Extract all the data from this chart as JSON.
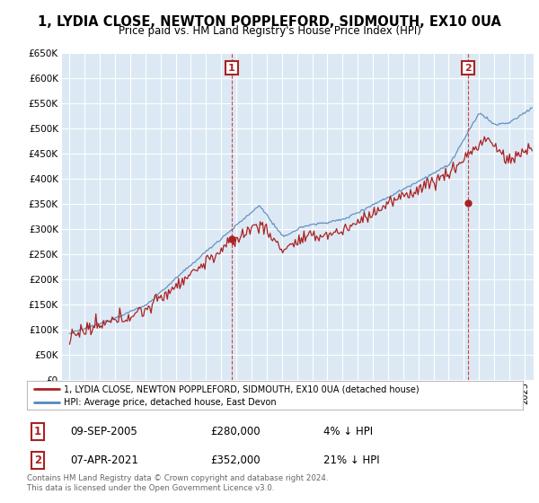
{
  "title": "1, LYDIA CLOSE, NEWTON POPPLEFORD, SIDMOUTH, EX10 0UA",
  "subtitle": "Price paid vs. HM Land Registry's House Price Index (HPI)",
  "ylim": [
    0,
    650000
  ],
  "yticks": [
    0,
    50000,
    100000,
    150000,
    200000,
    250000,
    300000,
    350000,
    400000,
    450000,
    500000,
    550000,
    600000,
    650000
  ],
  "xlim_start": 1994.5,
  "xlim_end": 2025.6,
  "background_color": "#dce9f5",
  "grid_color": "#ffffff",
  "sale1_date": 2005.69,
  "sale1_price": 280000,
  "sale1_label": "1",
  "sale2_date": 2021.27,
  "sale2_price": 352000,
  "sale2_label": "2",
  "legend_line1": "1, LYDIA CLOSE, NEWTON POPPLEFORD, SIDMOUTH, EX10 0UA (detached house)",
  "legend_line2": "HPI: Average price, detached house, East Devon",
  "table_row1": [
    "1",
    "09-SEP-2005",
    "£280,000",
    "4% ↓ HPI"
  ],
  "table_row2": [
    "2",
    "07-APR-2021",
    "£352,000",
    "21% ↓ HPI"
  ],
  "footer": "Contains HM Land Registry data © Crown copyright and database right 2024.\nThis data is licensed under the Open Government Licence v3.0.",
  "line_color_hpi": "#5588bb",
  "line_color_price": "#aa2222",
  "sale_marker_color": "#aa2222",
  "sale_line_color": "#cc3333"
}
